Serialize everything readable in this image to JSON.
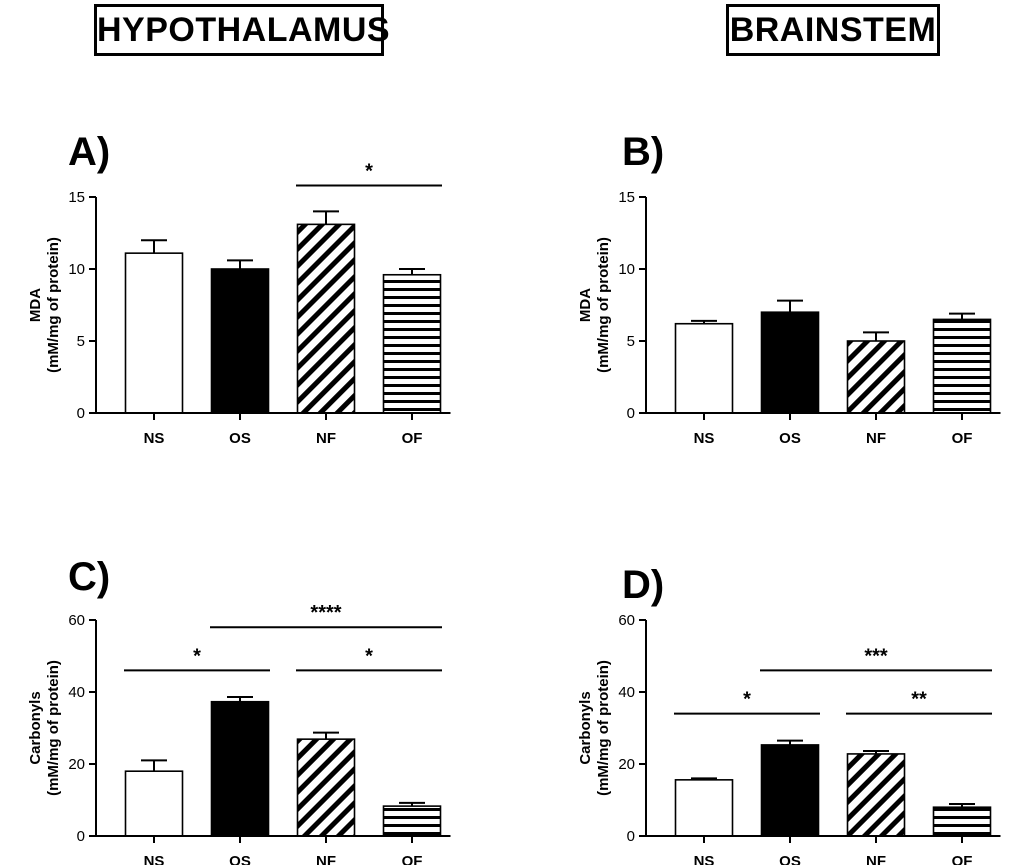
{
  "region_titles": {
    "left": "HYPOTHALAMUS",
    "right": "BRAINSTEM"
  },
  "chart_data": [
    {
      "type": "bar",
      "panel": "A)",
      "region": "HYPOTHALAMUS",
      "ylabel_line1": "MDA",
      "ylabel_line2": "(mM/mg of protein)",
      "ylim": [
        0,
        15
      ],
      "yticks": [
        0,
        5,
        10,
        15
      ],
      "categories": [
        "NS",
        "OS",
        "NF",
        "OF"
      ],
      "values": [
        11.1,
        10.0,
        13.1,
        9.6
      ],
      "errors": [
        0.9,
        0.6,
        0.9,
        0.4
      ],
      "fills": [
        "white",
        "black",
        "diagonal",
        "horizontal"
      ],
      "significance": [
        {
          "from": 2,
          "to": 3,
          "label": "*",
          "y": 15.8
        }
      ]
    },
    {
      "type": "bar",
      "panel": "B)",
      "region": "BRAINSTEM",
      "ylabel_line1": "MDA",
      "ylabel_line2": "(mM/mg of protein)",
      "ylim": [
        0,
        15
      ],
      "yticks": [
        0,
        5,
        10,
        15
      ],
      "categories": [
        "NS",
        "OS",
        "NF",
        "OF"
      ],
      "values": [
        6.2,
        7.0,
        5.0,
        6.5
      ],
      "errors": [
        0.2,
        0.8,
        0.6,
        0.4
      ],
      "fills": [
        "white",
        "black",
        "diagonal",
        "horizontal"
      ],
      "significance": []
    },
    {
      "type": "bar",
      "panel": "C)",
      "region": "HYPOTHALAMUS",
      "ylabel_line1": "Carbonyls",
      "ylabel_line2": "(mM/mg of protein)",
      "ylim": [
        0,
        60
      ],
      "yticks": [
        0,
        20,
        40,
        60
      ],
      "categories": [
        "NS",
        "OS",
        "NF",
        "OF"
      ],
      "values": [
        18.0,
        37.3,
        26.9,
        8.3
      ],
      "errors": [
        3.0,
        1.3,
        1.8,
        0.9
      ],
      "fills": [
        "white",
        "black",
        "diagonal",
        "horizontal"
      ],
      "significance": [
        {
          "from": 0,
          "to": 1,
          "label": "*",
          "y": 46
        },
        {
          "from": 1,
          "to": 3,
          "label": "****",
          "y": 58
        },
        {
          "from": 2,
          "to": 3,
          "label": "*",
          "y": 46
        }
      ]
    },
    {
      "type": "bar",
      "panel": "D)",
      "region": "BRAINSTEM",
      "ylabel_line1": "Carbonyls",
      "ylabel_line2": "(mM/mg of protein)",
      "ylim": [
        0,
        60
      ],
      "yticks": [
        0,
        20,
        40,
        60
      ],
      "categories": [
        "NS",
        "OS",
        "NF",
        "OF"
      ],
      "values": [
        15.6,
        25.3,
        22.8,
        8.0
      ],
      "errors": [
        0.4,
        1.2,
        0.8,
        0.9
      ],
      "fills": [
        "white",
        "black",
        "diagonal",
        "horizontal"
      ],
      "significance": [
        {
          "from": 0,
          "to": 1,
          "label": "*",
          "y": 34
        },
        {
          "from": 1,
          "to": 3,
          "label": "***",
          "y": 46
        },
        {
          "from": 2,
          "to": 3,
          "label": "**",
          "y": 34
        }
      ]
    }
  ]
}
